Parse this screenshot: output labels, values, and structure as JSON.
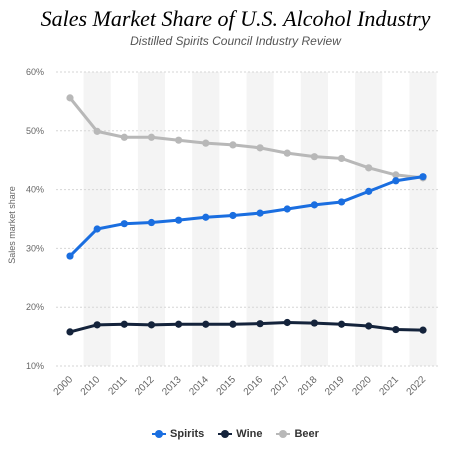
{
  "header": {
    "title": "Sales Market Share of U.S. Alcohol Industry",
    "subtitle": "Distilled Spirits Council Industry Review"
  },
  "chart_data": {
    "type": "line",
    "ylabel": "Sales market share",
    "xlabel": "",
    "categories": [
      "2000",
      "2010",
      "2011",
      "2012",
      "2013",
      "2014",
      "2015",
      "2016",
      "2017",
      "2018",
      "2019",
      "2020",
      "2021",
      "2022"
    ],
    "ylim": [
      10,
      60
    ],
    "yticks": [
      10,
      20,
      30,
      40,
      50,
      60
    ],
    "ytick_labels": [
      "10%",
      "20%",
      "30%",
      "40%",
      "50%",
      "60%"
    ],
    "grid": true,
    "legend_position": "bottom",
    "series": [
      {
        "name": "Spirits",
        "color": "#1a6ee0",
        "values": [
          28.7,
          33.3,
          34.2,
          34.4,
          34.8,
          35.3,
          35.6,
          36.0,
          36.7,
          37.4,
          37.9,
          39.7,
          41.5,
          42.2
        ]
      },
      {
        "name": "Wine",
        "color": "#14233b",
        "values": [
          15.8,
          17.0,
          17.1,
          17.0,
          17.1,
          17.1,
          17.1,
          17.2,
          17.4,
          17.3,
          17.1,
          16.8,
          16.2,
          16.1
        ]
      },
      {
        "name": "Beer",
        "color": "#b8b8b8",
        "values": [
          55.6,
          49.9,
          48.9,
          48.9,
          48.4,
          47.9,
          47.6,
          47.1,
          46.2,
          45.6,
          45.3,
          43.7,
          42.5,
          42.0
        ]
      }
    ]
  }
}
